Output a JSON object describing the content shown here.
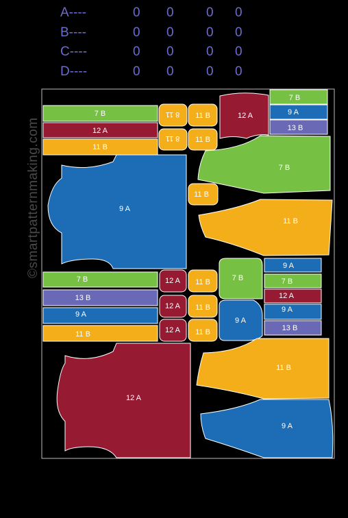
{
  "legend": [
    {
      "label": "A----",
      "values": [
        "0",
        "0",
        "0",
        "0"
      ]
    },
    {
      "label": "B----",
      "values": [
        "0",
        "0",
        "0",
        "0"
      ]
    },
    {
      "label": "C----",
      "values": [
        "0",
        "0",
        "0",
        "0"
      ]
    },
    {
      "label": "D----",
      "values": [
        "0",
        "0",
        "0",
        "0"
      ]
    }
  ],
  "watermark": "©smartpatternmaking.com",
  "colors": {
    "green": "#76c043",
    "red": "#961b32",
    "yellow": "#f4ae1a",
    "blue": "#1c6cb6",
    "purple": "#6a69b5"
  },
  "pieces": {
    "p1": "7 B",
    "p2": "12 A",
    "p3": "11 B",
    "p4": "8 11",
    "p5": "11 B",
    "p6": "8 11",
    "p7": "11 B",
    "p8": "12 A",
    "p9": "7 B",
    "p10": "9 A",
    "p11": "13 B",
    "p12": "9 A",
    "p13": "7 B",
    "p14": "11 B",
    "p15": "11 B",
    "p16": "7 B",
    "p17": "13 B",
    "p18": "9 A",
    "p19": "11 B",
    "p20": "12 A",
    "p21": "11 B",
    "p22": "12 A",
    "p23": "11 B",
    "p24": "12 A",
    "p25": "11 B",
    "p26": "7 B",
    "p27": "9 A",
    "p28": "9 A",
    "p29": "7 B",
    "p30": "12 A",
    "p31": "9 A",
    "p32": "13 B",
    "p33": "12 A",
    "p34": "11 B",
    "p35": "9 A"
  }
}
